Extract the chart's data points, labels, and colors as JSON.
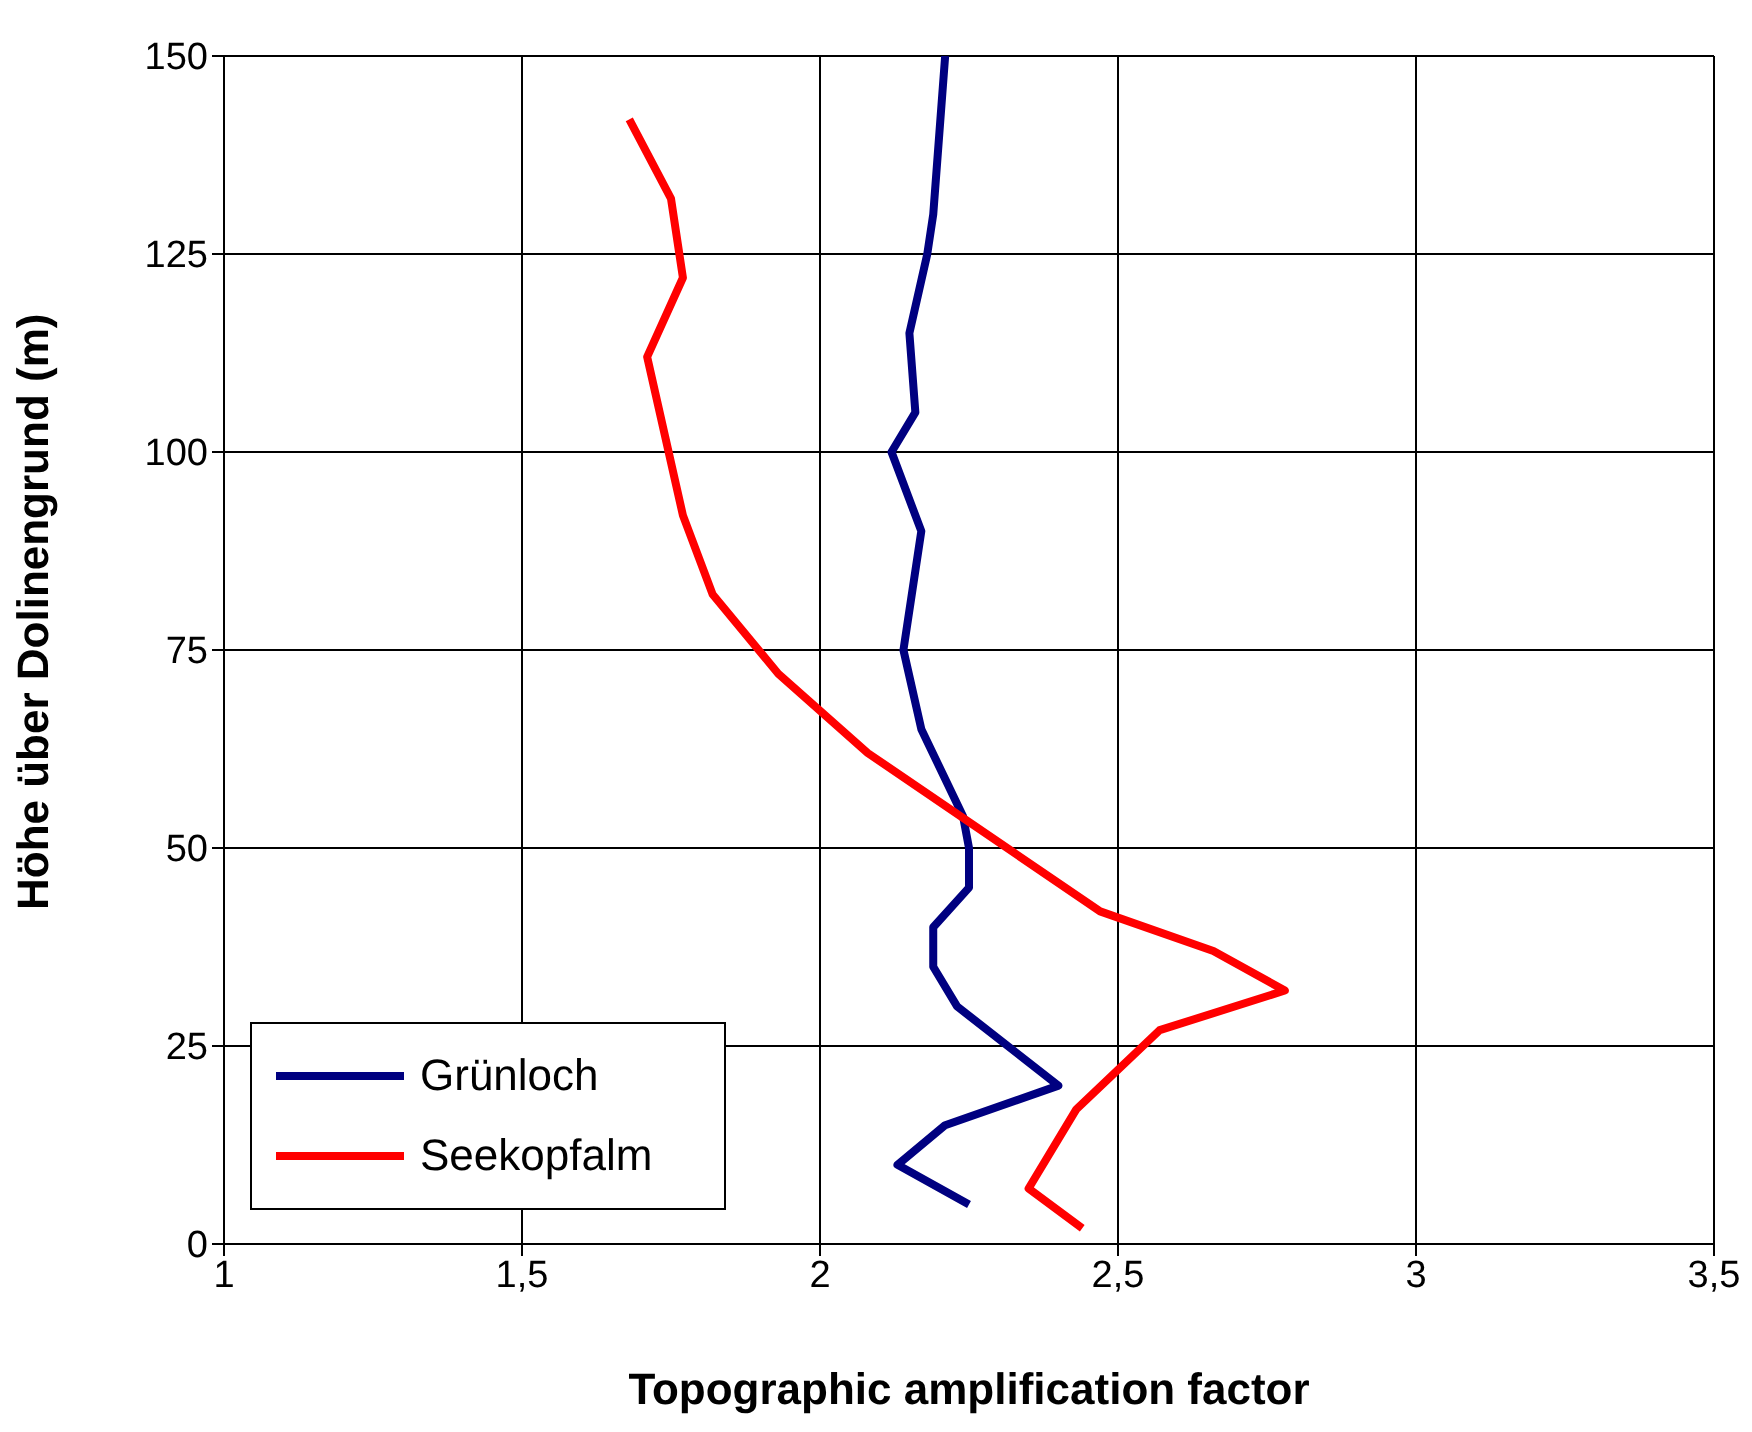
{
  "chart_data": {
    "type": "line",
    "xlabel": "Topographic amplification factor",
    "ylabel": "Höhe über Dolinengrund (m)",
    "xlim": [
      1,
      3.5
    ],
    "xticks": [
      1,
      {
        "value": 1.5,
        "label": "1,5"
      },
      2,
      {
        "value": 2.5,
        "label": "2,5"
      },
      3,
      {
        "value": 3.5,
        "label": "3,5"
      }
    ],
    "ylim": [
      0,
      150
    ],
    "yticks": [
      0,
      25,
      50,
      75,
      100,
      125,
      150
    ],
    "grid": true,
    "legend": "bottom left",
    "marker": "none",
    "line_style": "solid",
    "series": [
      {
        "name": "Grünloch",
        "color": "#000080",
        "x": [
          2.25,
          2.13,
          2.21,
          2.4,
          2.23,
          2.19,
          2.19,
          2.25,
          2.25,
          2.24,
          2.17,
          2.14,
          2.17,
          2.12,
          2.16,
          2.15,
          2.18,
          2.19,
          2.21
        ],
        "values": [
          5,
          10,
          15,
          20,
          30,
          35,
          40,
          45,
          50,
          54,
          65,
          75,
          90,
          100,
          105,
          115,
          125,
          130,
          150
        ]
      },
      {
        "name": "Seekopfalm",
        "color": "#ff0000",
        "x": [
          2.44,
          2.35,
          2.43,
          2.57,
          2.78,
          2.66,
          2.47,
          2.08,
          1.93,
          1.82,
          1.77,
          1.74,
          1.71,
          1.77,
          1.75,
          1.68
        ],
        "values": [
          2,
          7,
          17,
          27,
          32,
          37,
          42,
          62,
          72,
          82,
          92,
          102,
          112,
          122,
          132,
          142
        ]
      }
    ]
  }
}
